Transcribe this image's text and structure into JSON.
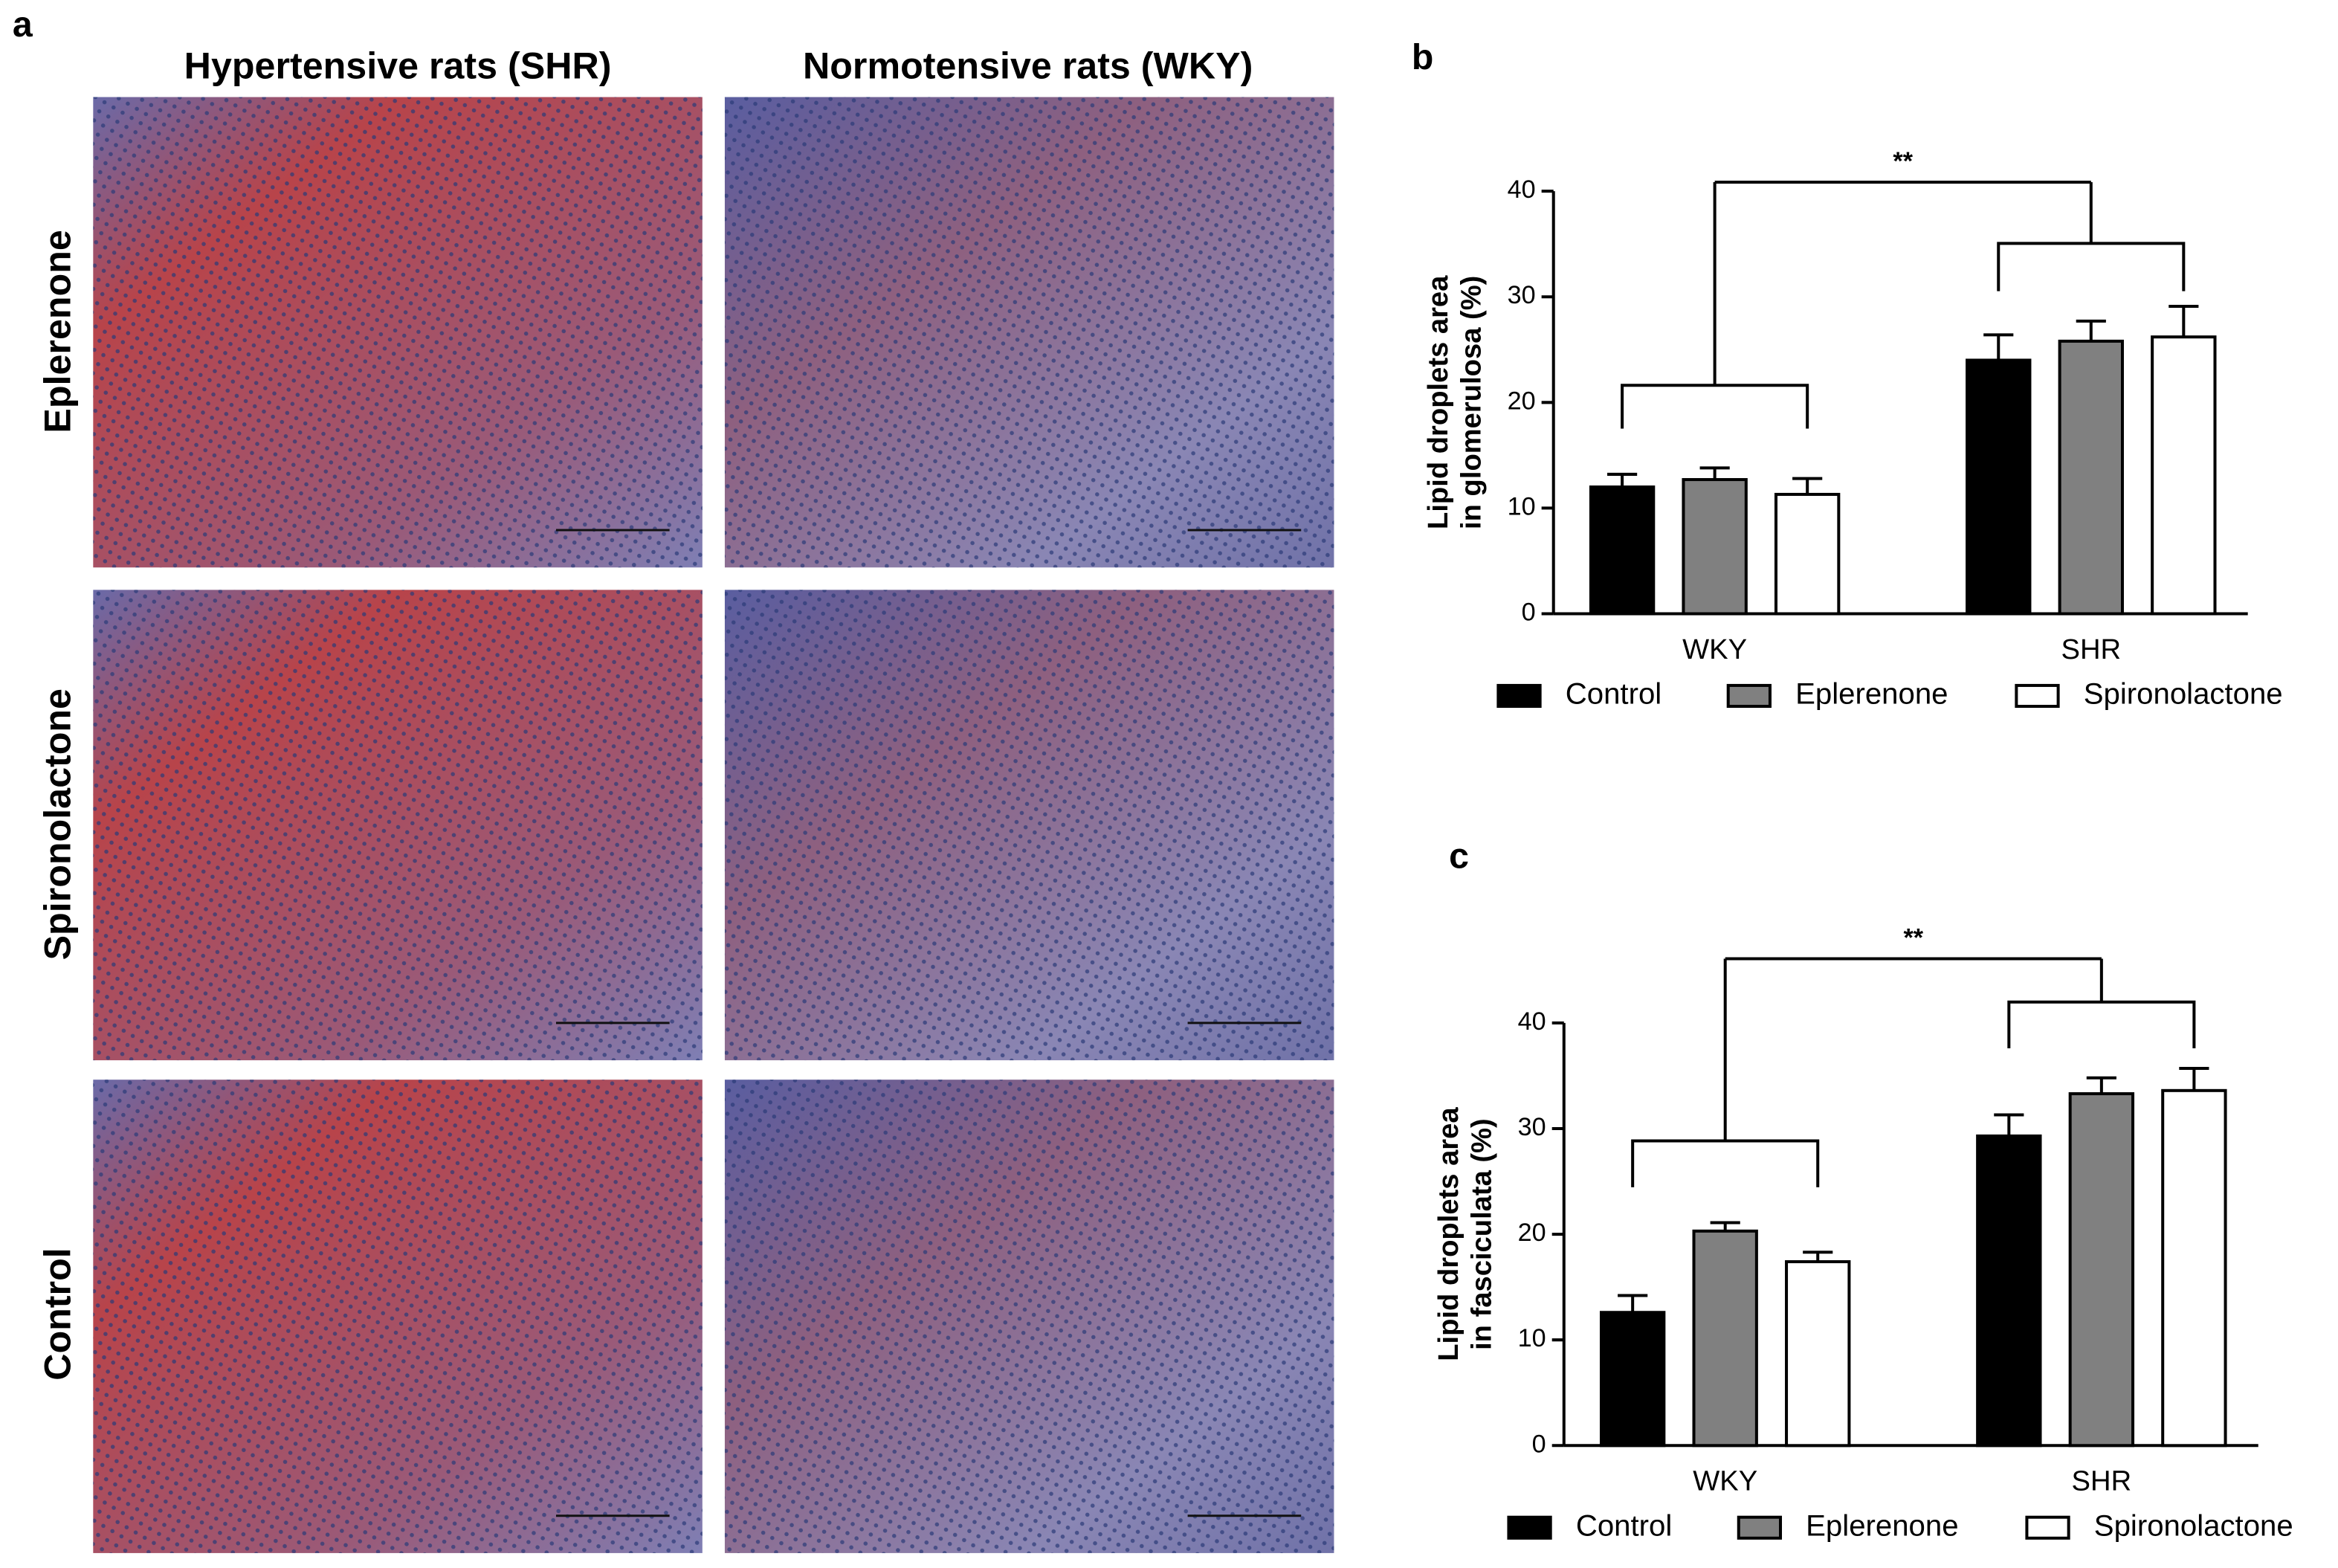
{
  "panel_a": {
    "label": "a",
    "columns": [
      "Hypertensive rats (SHR)",
      "Normotensive rats (WKY)"
    ],
    "rows": [
      "Eplerenone",
      "Spironolactone",
      "Control"
    ]
  },
  "chart_data": [
    {
      "type": "bar",
      "panel_label": "b",
      "ylabel": [
        "Lipid droplets area",
        "in glomerulosa (%)"
      ],
      "categories": [
        "WKY",
        "SHR"
      ],
      "series": [
        {
          "name": "Control",
          "color": "#000000",
          "values": [
            12.0,
            24.0
          ],
          "errors": [
            1.2,
            2.4
          ]
        },
        {
          "name": "Eplerenone",
          "color": "#808080",
          "values": [
            12.7,
            25.8
          ],
          "errors": [
            1.1,
            1.9
          ]
        },
        {
          "name": "Spironolactone",
          "color": "#ffffff",
          "values": [
            11.3,
            26.2
          ],
          "errors": [
            1.5,
            2.9
          ]
        }
      ],
      "ylim": [
        0,
        40
      ],
      "yticks": [
        0,
        10,
        20,
        30,
        40
      ],
      "annotation": "**",
      "legend": "bottom"
    },
    {
      "type": "bar",
      "panel_label": "c",
      "ylabel": [
        "Lipid droplets area",
        "in fasciculata (%)"
      ],
      "categories": [
        "WKY",
        "SHR"
      ],
      "series": [
        {
          "name": "Control",
          "color": "#000000",
          "values": [
            12.6,
            29.3
          ],
          "errors": [
            1.6,
            2.0
          ]
        },
        {
          "name": "Eplerenone",
          "color": "#808080",
          "values": [
            20.3,
            33.3
          ],
          "errors": [
            0.8,
            1.5
          ]
        },
        {
          "name": "Spironolactone",
          "color": "#ffffff",
          "values": [
            17.4,
            33.6
          ],
          "errors": [
            0.9,
            2.1
          ]
        }
      ],
      "ylim": [
        0,
        40
      ],
      "yticks": [
        0,
        10,
        20,
        30,
        40
      ],
      "annotation": "**",
      "legend": "bottom"
    }
  ]
}
